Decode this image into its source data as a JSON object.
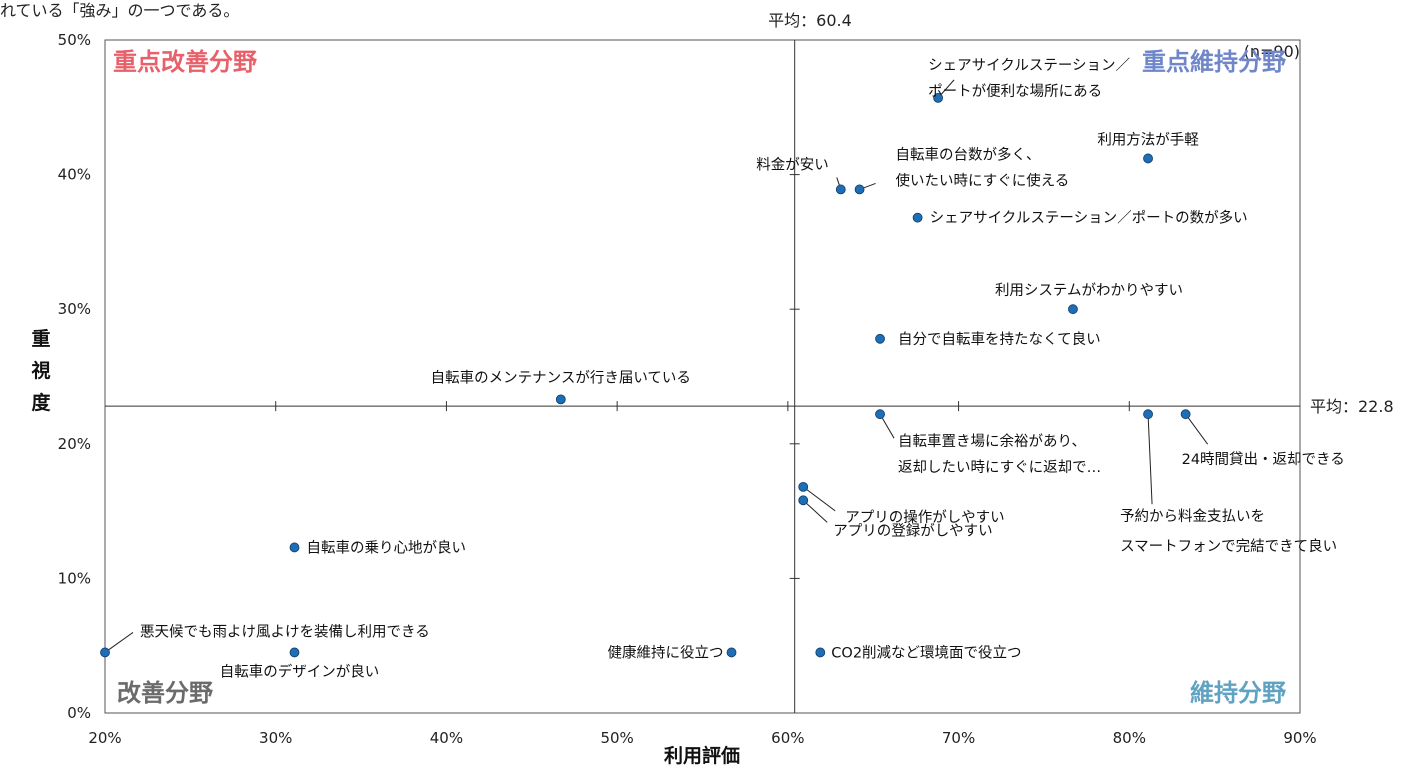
{
  "caption": "れている「強み」の一つである。",
  "chart_data": {
    "type": "scatter",
    "xlabel": "利用評価",
    "ylabel": "重視度",
    "sample_note": "(n=90)",
    "x_range": [
      20,
      90
    ],
    "y_range": [
      0,
      50
    ],
    "x_ticks": [
      "20%",
      "30%",
      "40%",
      "50%",
      "60%",
      "70%",
      "80%",
      "90%"
    ],
    "y_ticks": [
      "0%",
      "10%",
      "20%",
      "30%",
      "40%",
      "50%"
    ],
    "x_mean": 60.4,
    "y_mean": 22.8,
    "x_mean_label": "平均：60.4",
    "y_mean_label": "平均：22.8",
    "quadrants": [
      {
        "label": "重点改善分野",
        "color": "#e8606a",
        "position": "top-left"
      },
      {
        "label": "重点維持分野",
        "color": "#6f86c9",
        "position": "top-right"
      },
      {
        "label": "改善分野",
        "color": "#6b6b6b",
        "position": "bottom-left"
      },
      {
        "label": "維持分野",
        "color": "#5fa2c2",
        "position": "bottom-right"
      }
    ],
    "marker_color": "#1f6db4",
    "points": [
      {
        "x": 68.8,
        "y": 45.7,
        "lines": [
          "シェアサイクルステーション／",
          "ポートが便利な場所にある"
        ]
      },
      {
        "x": 81.1,
        "y": 41.2,
        "lines": [
          "利用方法が手軽"
        ]
      },
      {
        "x": 63.1,
        "y": 38.9,
        "lines": [
          "料金が安い"
        ]
      },
      {
        "x": 64.2,
        "y": 38.9,
        "lines": [
          "自転車の台数が多く、",
          "使いたい時にすぐに使える"
        ]
      },
      {
        "x": 67.6,
        "y": 36.8,
        "lines": [
          "シェアサイクルステーション／ポートの数が多い"
        ]
      },
      {
        "x": 76.7,
        "y": 30.0,
        "lines": [
          "利用システムがわかりやすい"
        ]
      },
      {
        "x": 65.4,
        "y": 27.8,
        "lines": [
          "自分で自転車を持たなくて良い"
        ]
      },
      {
        "x": 46.7,
        "y": 23.3,
        "lines": [
          "自転車のメンテナンスが行き届いている"
        ]
      },
      {
        "x": 65.4,
        "y": 22.2,
        "lines": [
          "自転車置き場に余裕があり、",
          "返却したい時にすぐに返却で…"
        ]
      },
      {
        "x": 81.1,
        "y": 22.2,
        "lines": [
          "予約から料金支払いを",
          "スマートフォンで完結できて良い"
        ]
      },
      {
        "x": 83.3,
        "y": 22.2,
        "lines": [
          "24時間貸出・返却できる"
        ]
      },
      {
        "x": 60.9,
        "y": 16.8,
        "lines": [
          "アプリの操作がしやすい"
        ]
      },
      {
        "x": 60.9,
        "y": 15.8,
        "lines": [
          "アプリの登録がしやすい"
        ]
      },
      {
        "x": 31.1,
        "y": 12.3,
        "lines": [
          "自転車の乗り心地が良い"
        ]
      },
      {
        "x": 20.0,
        "y": 4.5,
        "lines": [
          "悪天候でも雨よけ風よけを装備し利用できる"
        ]
      },
      {
        "x": 31.1,
        "y": 4.5,
        "lines": [
          "自転車のデザインが良い"
        ]
      },
      {
        "x": 56.7,
        "y": 4.5,
        "lines": [
          "健康維持に役立つ"
        ]
      },
      {
        "x": 61.9,
        "y": 4.5,
        "lines": [
          "CO2削減など環境面で役立つ"
        ]
      }
    ]
  }
}
